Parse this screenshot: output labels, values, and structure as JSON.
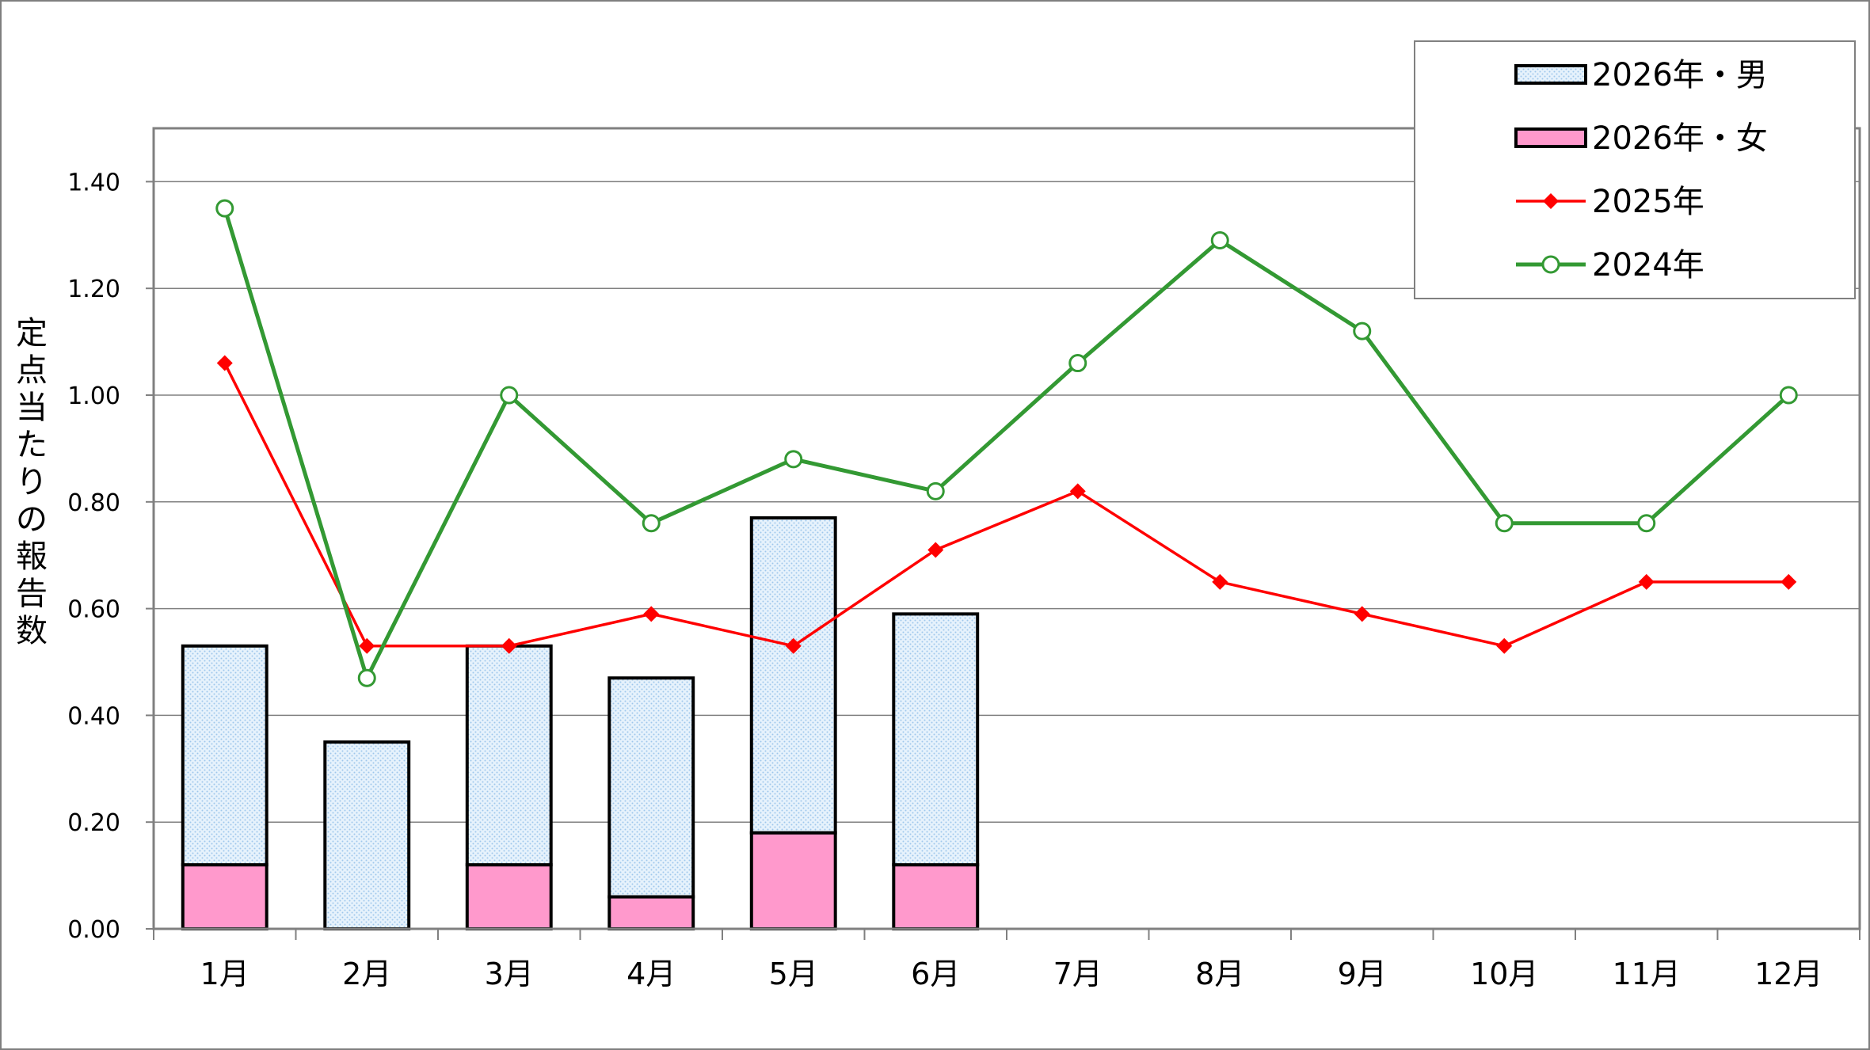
{
  "chart_data": {
    "type": "bar",
    "categories": [
      "1月",
      "2月",
      "3月",
      "4月",
      "5月",
      "6月",
      "7月",
      "8月",
      "9月",
      "10月",
      "11月",
      "12月"
    ],
    "ylabel": "定点当たりの報告数",
    "ylim": [
      0,
      1.5
    ],
    "yticks": [
      "0.00",
      "0.20",
      "0.40",
      "0.60",
      "0.80",
      "1.00",
      "1.20",
      "1.40"
    ],
    "grid": true,
    "legend_position": "top-right",
    "stacked_bars": [
      {
        "name": "2026年・女",
        "values": [
          0.12,
          0.0,
          0.12,
          0.06,
          0.18,
          0.12
        ],
        "color": "#ff99cc"
      },
      {
        "name": "2026年・男",
        "values": [
          0.41,
          0.35,
          0.41,
          0.41,
          0.59,
          0.47
        ],
        "color": "#ddeeff"
      }
    ],
    "lines": [
      {
        "name": "2025年",
        "values": [
          1.06,
          0.53,
          0.53,
          0.59,
          0.53,
          0.71,
          0.82,
          0.65,
          0.59,
          0.53,
          0.65,
          0.65
        ],
        "color": "#ff0000",
        "marker": "diamond"
      },
      {
        "name": "2024年",
        "values": [
          1.35,
          0.47,
          1.0,
          0.76,
          0.88,
          0.82,
          1.06,
          1.29,
          1.12,
          0.76,
          0.76,
          1.0
        ],
        "color": "#339933",
        "marker": "open-circle"
      }
    ],
    "legend": [
      "2026年・男",
      "2026年・女",
      "2025年",
      "2024年"
    ]
  }
}
